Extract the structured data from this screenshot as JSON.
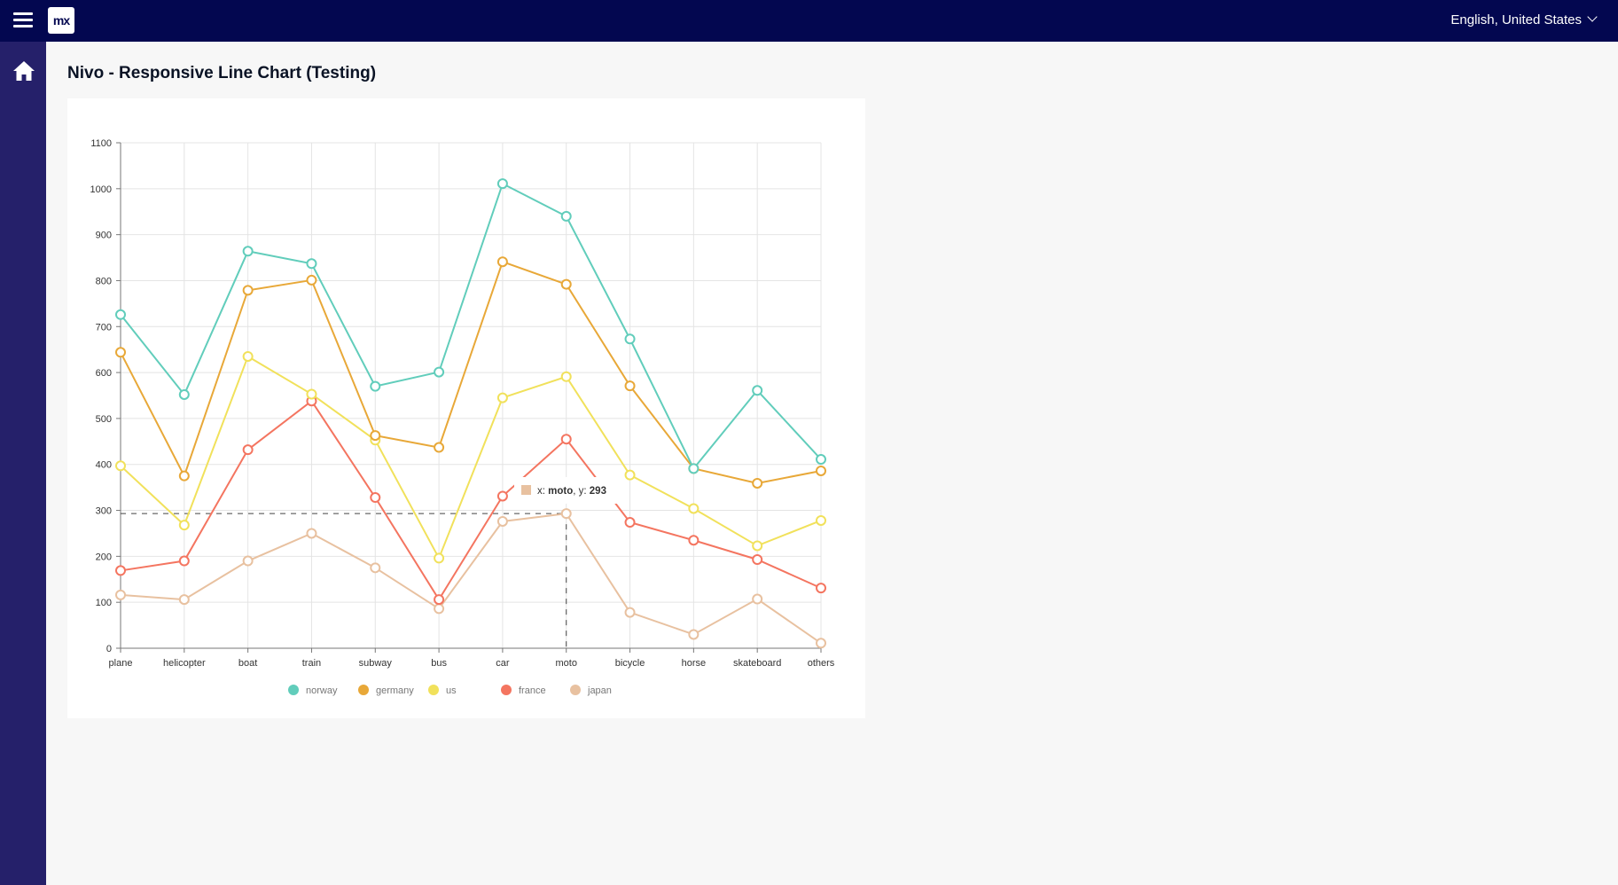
{
  "header": {
    "logo_text": "mx",
    "language": "English, United States",
    "menu_icon": "hamburger-menu-icon",
    "chevron_icon": "chevron-down-icon"
  },
  "sidebar": {
    "items": [
      {
        "icon": "home-icon"
      }
    ]
  },
  "page": {
    "title": "Nivo - Responsive Line Chart (Testing)"
  },
  "tooltip": {
    "x_prefix": "x: ",
    "x_value": "moto",
    "y_prefix": ", y: ",
    "y_value": "293"
  },
  "chart_data": {
    "type": "line",
    "categories": [
      "plane",
      "helicopter",
      "boat",
      "train",
      "subway",
      "bus",
      "car",
      "moto",
      "bicycle",
      "horse",
      "skateboard",
      "others"
    ],
    "ylim": [
      0,
      1100
    ],
    "yticks": [
      0,
      100,
      200,
      300,
      400,
      500,
      600,
      700,
      800,
      900,
      1000,
      1100
    ],
    "grid": true,
    "legend_position": "bottom",
    "series": [
      {
        "name": "norway",
        "color": "#61cdbb",
        "values": [
          726,
          552,
          864,
          837,
          570,
          601,
          1011,
          940,
          673,
          391,
          561,
          411
        ]
      },
      {
        "name": "germany",
        "color": "#e8a838",
        "values": [
          644,
          375,
          779,
          801,
          463,
          437,
          841,
          792,
          571,
          391,
          359,
          386
        ]
      },
      {
        "name": "us",
        "color": "#f1e15b",
        "values": [
          397,
          268,
          635,
          553,
          453,
          196,
          545,
          591,
          377,
          304,
          223,
          278
        ]
      },
      {
        "name": "france",
        "color": "#f47560",
        "values": [
          169,
          190,
          432,
          538,
          328,
          106,
          331,
          455,
          274,
          235,
          193,
          131
        ]
      },
      {
        "name": "japan",
        "color": "#e8c1a0",
        "values": [
          116,
          106,
          190,
          250,
          175,
          86,
          276,
          293,
          78,
          30,
          107,
          11
        ]
      }
    ],
    "crosshair": {
      "category": "moto",
      "value": 293
    }
  }
}
